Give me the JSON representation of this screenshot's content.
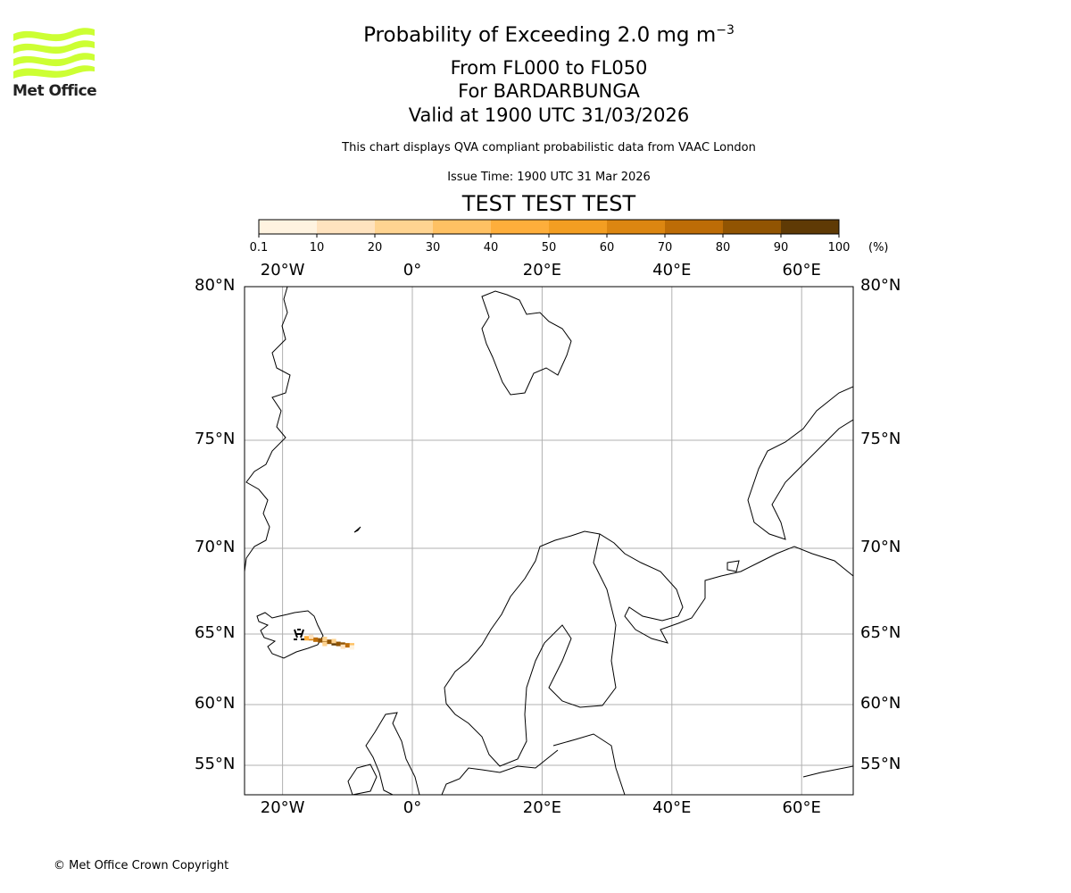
{
  "header": {
    "title": "Probability of Exceeding 2.0 mg m",
    "title_superscript": "−3",
    "flight_levels": "From FL000 to FL050",
    "volcano": "For BARDARBUNGA",
    "valid_time": "Valid at 1900 UTC 31/03/2026",
    "description": "This chart displays QVA compliant probabilistic data from VAAC London",
    "issue_time": "Issue Time: 1900 UTC 31 Mar 2026",
    "test_banner": "TEST TEST TEST",
    "test_color": "#ee0000"
  },
  "logo": {
    "text": "Met Office",
    "color": "#ccff33"
  },
  "footer": {
    "copyright": "© Met Office Crown Copyright"
  },
  "chart_data": {
    "type": "heatmap",
    "title": "Probability of Exceeding 2.0 mg m−3",
    "colorbar": {
      "ticks": [
        "0.1",
        "10",
        "20",
        "30",
        "40",
        "50",
        "60",
        "70",
        "80",
        "90",
        "100"
      ],
      "unit": "(%)",
      "colors": [
        "#fff3e0",
        "#ffe3bf",
        "#ffd491",
        "#ffc163",
        "#feae3b",
        "#f39e22",
        "#dc8611",
        "#bd6c06",
        "#915402",
        "#5f3a05"
      ]
    },
    "x_ticks": [
      {
        "lon": -20,
        "label": "20°W"
      },
      {
        "lon": 0,
        "label": "0°"
      },
      {
        "lon": 20,
        "label": "20°E"
      },
      {
        "lon": 40,
        "label": "40°E"
      },
      {
        "lon": 60,
        "label": "60°E"
      }
    ],
    "y_ticks": [
      {
        "lat": 80,
        "label": "80°N"
      },
      {
        "lat": 75,
        "label": "75°N"
      },
      {
        "lat": 70,
        "label": "70°N"
      },
      {
        "lat": 65,
        "label": "65°N"
      },
      {
        "lat": 60,
        "label": "60°N"
      },
      {
        "lat": 55,
        "label": "55°N"
      }
    ],
    "lon_range": [
      -26,
      68
    ],
    "lat_range": [
      53,
      80
    ],
    "grid": true,
    "volcano_location": {
      "name": "BARDARBUNGA",
      "lon": -17.5,
      "lat": 64.6
    },
    "plume_cells": [
      {
        "lon": -16.3,
        "lat": 64.7,
        "prob": 45
      },
      {
        "lon": -15.6,
        "lat": 64.7,
        "prob": 65
      },
      {
        "lon": -14.9,
        "lat": 64.6,
        "prob": 75
      },
      {
        "lon": -14.2,
        "lat": 64.55,
        "prob": 85
      },
      {
        "lon": -13.5,
        "lat": 64.5,
        "prob": 85
      },
      {
        "lon": -12.8,
        "lat": 64.45,
        "prob": 85
      },
      {
        "lon": -12.1,
        "lat": 64.35,
        "prob": 90
      },
      {
        "lon": -11.4,
        "lat": 64.3,
        "prob": 85
      },
      {
        "lon": -10.7,
        "lat": 64.25,
        "prob": 85
      },
      {
        "lon": -10.0,
        "lat": 64.2,
        "prob": 75
      },
      {
        "lon": -9.3,
        "lat": 64.2,
        "prob": 30
      },
      {
        "lon": -15.6,
        "lat": 64.8,
        "prob": 15
      },
      {
        "lon": -13.5,
        "lat": 64.65,
        "prob": 25
      },
      {
        "lon": -12.1,
        "lat": 64.5,
        "prob": 20
      },
      {
        "lon": -10.7,
        "lat": 64.1,
        "prob": 10
      },
      {
        "lon": -9.3,
        "lat": 64.05,
        "prob": 5
      },
      {
        "lon": -13.5,
        "lat": 64.3,
        "prob": 20
      }
    ]
  }
}
